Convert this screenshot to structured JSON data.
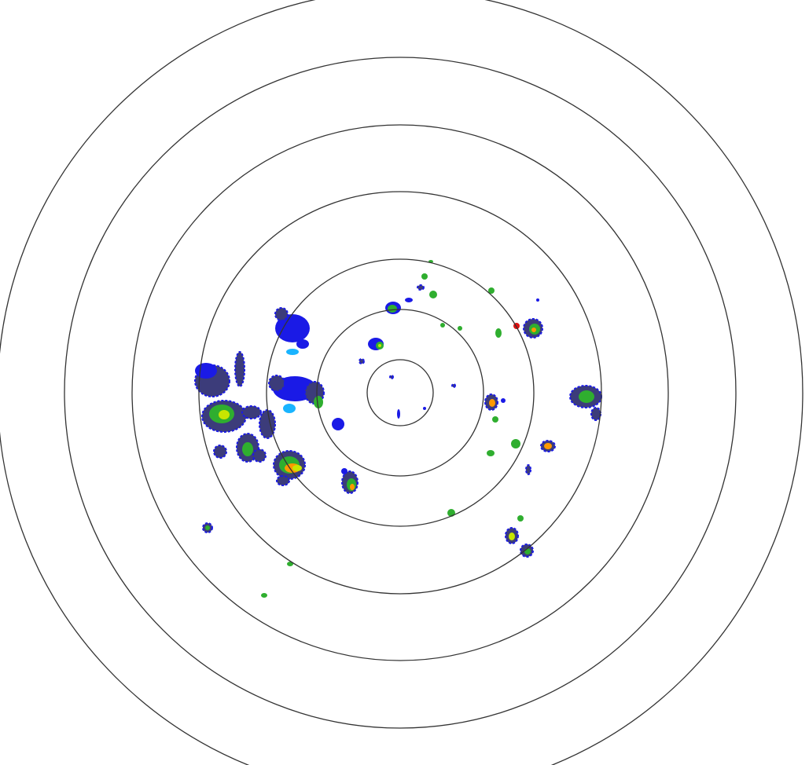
{
  "radar": {
    "range_ring_count": 7,
    "colors": {
      "ring": "#333333",
      "background": "#ffffff",
      "edge": "#3c3c7a",
      "light_echo": "#1a1ae6",
      "faint_echo": "#19b4ff",
      "moderate_echo": "#2fae2f",
      "strong_echo": "#c8e600",
      "heavy_echo": "#ff9900",
      "intense_echo": "#e01010"
    }
  }
}
